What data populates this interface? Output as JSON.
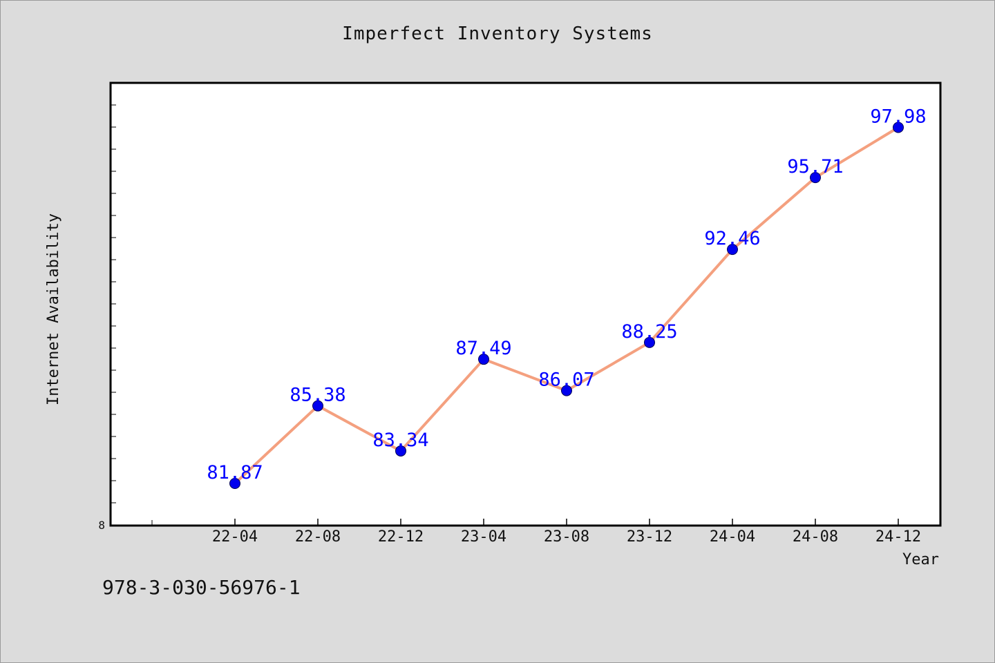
{
  "chart_data": {
    "type": "line",
    "title": "Imperfect Inventory Systems",
    "xlabel": "Year",
    "ylabel": "Internet Availability",
    "y_tick_label": "8",
    "categories": [
      "22-04",
      "22-08",
      "22-12",
      "23-04",
      "23-08",
      "23-12",
      "24-04",
      "24-08",
      "24-12"
    ],
    "series": [
      {
        "values": [
          81.87,
          85.38,
          83.34,
          87.49,
          86.07,
          88.25,
          92.46,
          95.71,
          97.98
        ],
        "data_labels": [
          "81.87",
          "85.38",
          "83.34",
          "87.49",
          "86.07",
          "88.25",
          "92.46",
          "95.71",
          "97.98"
        ],
        "line_color": "#f4a07f",
        "marker_color": "#0000ee",
        "label_color": "#0000ff"
      }
    ],
    "ylim": [
      80,
      100
    ],
    "grid": false,
    "legend": "none"
  },
  "footer": {
    "isbn": "978-3-030-56976-1"
  },
  "colors": {
    "background": "#dcdcdc",
    "plot_area": "#ffffff",
    "axis": "#000000"
  }
}
